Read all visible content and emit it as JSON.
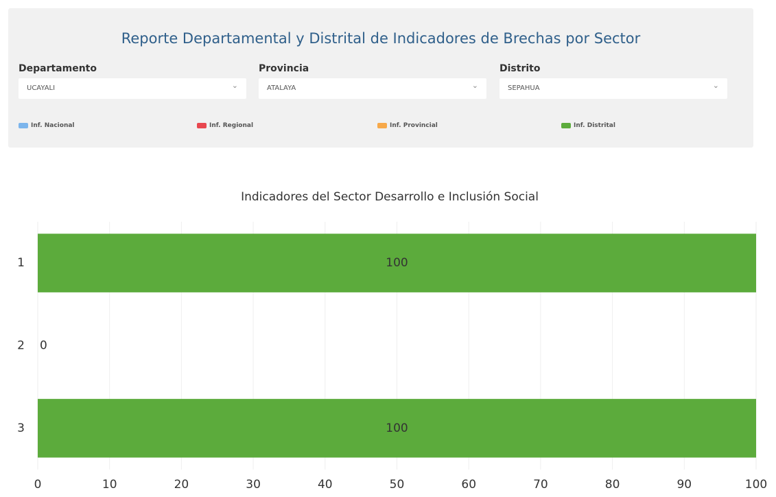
{
  "header": {
    "title": "Reporte Departamental y Distrital de Indicadores de Brechas por Sector",
    "filters": [
      {
        "label": "Departamento",
        "value": "UCAYALI"
      },
      {
        "label": "Provincia",
        "value": "ATALAYA"
      },
      {
        "label": "Distrito",
        "value": "SEPAHUA"
      }
    ],
    "legend": [
      {
        "name": "Inf. Nacional",
        "color": "#7cb5ec"
      },
      {
        "name": "Inf. Regional",
        "color": "#e8474f"
      },
      {
        "name": "Inf. Provincial",
        "color": "#f7a94a"
      },
      {
        "name": "Inf. Distrital",
        "color": "#5cab3c"
      }
    ]
  },
  "chart_data": {
    "type": "bar",
    "orientation": "horizontal",
    "title": "Indicadores del Sector Desarrollo e Inclusión Social",
    "categories": [
      "1",
      "2",
      "3"
    ],
    "values": [
      100,
      0,
      100
    ],
    "color": "#5cab3c",
    "xlim": [
      0,
      100
    ],
    "xticks": [
      0,
      10,
      20,
      30,
      40,
      50,
      60,
      70,
      80,
      90,
      100
    ],
    "grid": true
  }
}
